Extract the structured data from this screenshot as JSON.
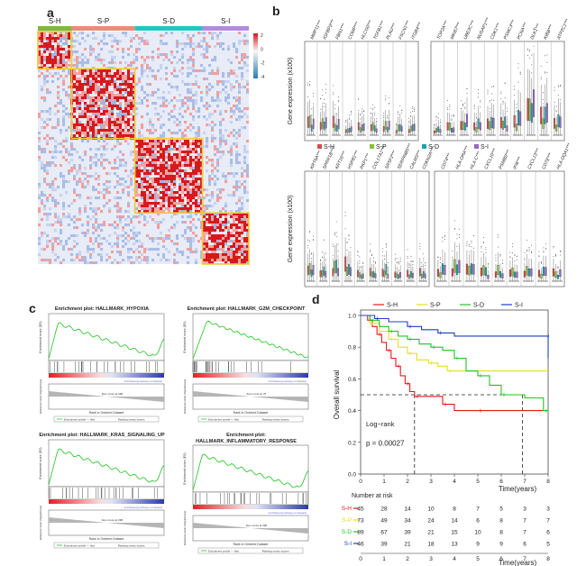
{
  "panels": {
    "a": "a",
    "b": "b",
    "c": "c",
    "d": "d"
  },
  "heatmap": {
    "groups": [
      {
        "label": "S-H",
        "color": "#7dba3c",
        "frac": 0.16
      },
      {
        "label": "S-P",
        "color": "#ef8a7a",
        "frac": 0.3
      },
      {
        "label": "S-D",
        "color": "#27c4c4",
        "frac": 0.32
      },
      {
        "label": "S-I",
        "color": "#b48ae0",
        "frac": 0.22
      }
    ],
    "scale_ticks": [
      "2",
      "0",
      "-2",
      "-4"
    ],
    "colors": {
      "high": "#d7191c",
      "mid": "#f7f7f7",
      "low": "#2c7bb6",
      "box": "#f2c933"
    }
  },
  "boxplots": {
    "ylabel_top": "Gene expression (x100)",
    "ylabel_bottom": "Gene expression (x100)",
    "legend": [
      {
        "label": "S-H",
        "color": "#e0484b"
      },
      {
        "label": "S-P",
        "color": "#8bbf3c"
      },
      {
        "label": "S-D",
        "color": "#1aa3b0"
      },
      {
        "label": "S-I",
        "color": "#9a66cc"
      }
    ],
    "genes_top_left": [
      "MMP11***",
      "IGFBP3***",
      "FBN1***",
      "COMP***",
      "HLCG0***",
      "TGFB1***",
      "PLAU***",
      "FSCN1***",
      "ITGB4***"
    ],
    "genes_top_right": [
      "TOP2A***",
      "MKI67***",
      "UBE2C***",
      "NUSAP1***",
      "CDK1***",
      "PSMC3***",
      "PCNA***",
      "DLK1***",
      "KIBB***",
      "ATP2C1***"
    ],
    "genes_bottom_left": [
      "KRT6A***",
      "SPRR1B***",
      "KRT16***",
      "HSPB1***",
      "PKP1***",
      "COL17A1***",
      "SRSF2***",
      "SERPINB5***",
      "CALM3***",
      "CDKN2A***"
    ],
    "genes_bottom_right": [
      "CD74***",
      "HLA-DRA***",
      "HLA-C***",
      "CXCL10***",
      "PSMB8***",
      "IFI6***",
      "CXCL13***",
      "CD7E***",
      "HLA-DQA1***"
    ]
  },
  "gsea": [
    {
      "title": "Enrichment plot: HALLMARK_HYPOXIA",
      "title2": "",
      "ylabel": "Enrichment score (ES)",
      "xlabel": "Rank in Ordered Dataset",
      "zero_note": "Zero cross at 398",
      "legend1": "Enrichment profile — Hits",
      "legend2": "Ranking metric scores",
      "corr": "'LH=Mean'(positively correlated)",
      "rank_label": "Ranked list metric (Signal2Noise)"
    },
    {
      "title": "Enrichment plot: HALLMARK_G2M_CHECKPOINT",
      "title2": "",
      "ylabel": "Enrichment score (ES)",
      "xlabel": "Rank in Ordered Dataset",
      "zero_note": "Zero cross at 75",
      "legend1": "Enrichment profile — Hits",
      "legend2": "Ranking metric scores",
      "corr": "'LH=Mean'(positively correlated)",
      "rank_label": "Ranked list metric (Signal2Noise)"
    },
    {
      "title": "Enrichment plot: HALLMARK_KRAS_SIGNALING_UP",
      "title2": "",
      "ylabel": "Enrichment score (ES)",
      "xlabel": "Rank in Ordered Dataset",
      "zero_note": "Zero cross at 398",
      "legend1": "Enrichment profile — Hits",
      "legend2": "Ranking metric scores",
      "corr": "'LH=Mean'(positively correlated)",
      "rank_label": "Ranked list metric (Signal2Noise)"
    },
    {
      "title": "Enrichment plot:",
      "title2": "HALLMARK_INFLAMMATORY_RESPONSE",
      "ylabel": "Enrichment score (ES)",
      "xlabel": "Rank in Ordered Dataset",
      "zero_note": "Zero cross at 398",
      "legend1": "Enrichment profile — Hits",
      "legend2": "Ranking metric scores",
      "corr": "'LH=Mean'(positively correlated)",
      "rank_label": "Ranked list metric (Signal2Noise)"
    }
  ],
  "chart_data": {
    "type": "line",
    "ylabel": "Overall survival",
    "xlabel": "Time(years)",
    "xlim": [
      0,
      8
    ],
    "ylim": [
      0,
      1.0
    ],
    "xticks": [
      0,
      1,
      2,
      3,
      4,
      5,
      6,
      7,
      8
    ],
    "yticks": [
      "0.0",
      "0.2",
      "0.4",
      "0.6",
      "0.8",
      "1.0"
    ],
    "legend_position": "top",
    "logrank_label": "Log−rank",
    "pvalue": "p = 0.00027",
    "median_line_y": 0.5,
    "series": [
      {
        "name": "S-H",
        "color": "#e41a1c",
        "x": [
          0,
          0.3,
          0.5,
          0.7,
          0.9,
          1.1,
          1.3,
          1.5,
          1.7,
          1.9,
          2.1,
          2.3,
          2.6,
          3.5,
          4.0,
          5.0,
          8.0
        ],
        "y": [
          1.0,
          0.97,
          0.93,
          0.88,
          0.83,
          0.78,
          0.73,
          0.68,
          0.62,
          0.57,
          0.52,
          0.49,
          0.49,
          0.44,
          0.4,
          0.4,
          0.4
        ]
      },
      {
        "name": "S-P",
        "color": "#e5e01a",
        "x": [
          0,
          0.4,
          0.8,
          1.2,
          1.6,
          2.0,
          2.4,
          2.9,
          3.3,
          3.7,
          8.0
        ],
        "y": [
          1.0,
          0.95,
          0.9,
          0.85,
          0.8,
          0.76,
          0.72,
          0.7,
          0.68,
          0.65,
          0.65
        ]
      },
      {
        "name": "S-D",
        "color": "#22c322",
        "x": [
          0,
          0.4,
          0.8,
          1.2,
          1.6,
          2.0,
          2.5,
          3.0,
          3.5,
          4.0,
          4.5,
          5.0,
          5.5,
          6.0,
          7.0,
          7.8,
          8.0
        ],
        "y": [
          1.0,
          0.97,
          0.93,
          0.9,
          0.87,
          0.85,
          0.82,
          0.8,
          0.78,
          0.73,
          0.65,
          0.62,
          0.56,
          0.5,
          0.48,
          0.4,
          0.4
        ]
      },
      {
        "name": "S-I",
        "color": "#1f3fbf",
        "x": [
          0,
          0.6,
          1.2,
          2.0,
          2.6,
          3.3,
          4.0,
          7.9,
          8.0
        ],
        "y": [
          1.0,
          0.98,
          0.96,
          0.93,
          0.91,
          0.89,
          0.87,
          0.87,
          0.73
        ]
      }
    ],
    "risk_table": {
      "title": "Number at risk",
      "rows": [
        {
          "name": "S-H",
          "color": "#e41a1c",
          "values": [
            45,
            28,
            14,
            10,
            8,
            7,
            5,
            3,
            3
          ]
        },
        {
          "name": "S-P",
          "color": "#e5e01a",
          "values": [
            73,
            49,
            34,
            24,
            14,
            6,
            8,
            7,
            7
          ]
        },
        {
          "name": "S-D",
          "color": "#22c322",
          "values": [
            89,
            67,
            39,
            21,
            15,
            10,
            8,
            7,
            6
          ]
        },
        {
          "name": "S-I",
          "color": "#1f3fbf",
          "values": [
            46,
            39,
            21,
            18,
            13,
            9,
            9,
            6,
            5
          ]
        }
      ]
    }
  }
}
